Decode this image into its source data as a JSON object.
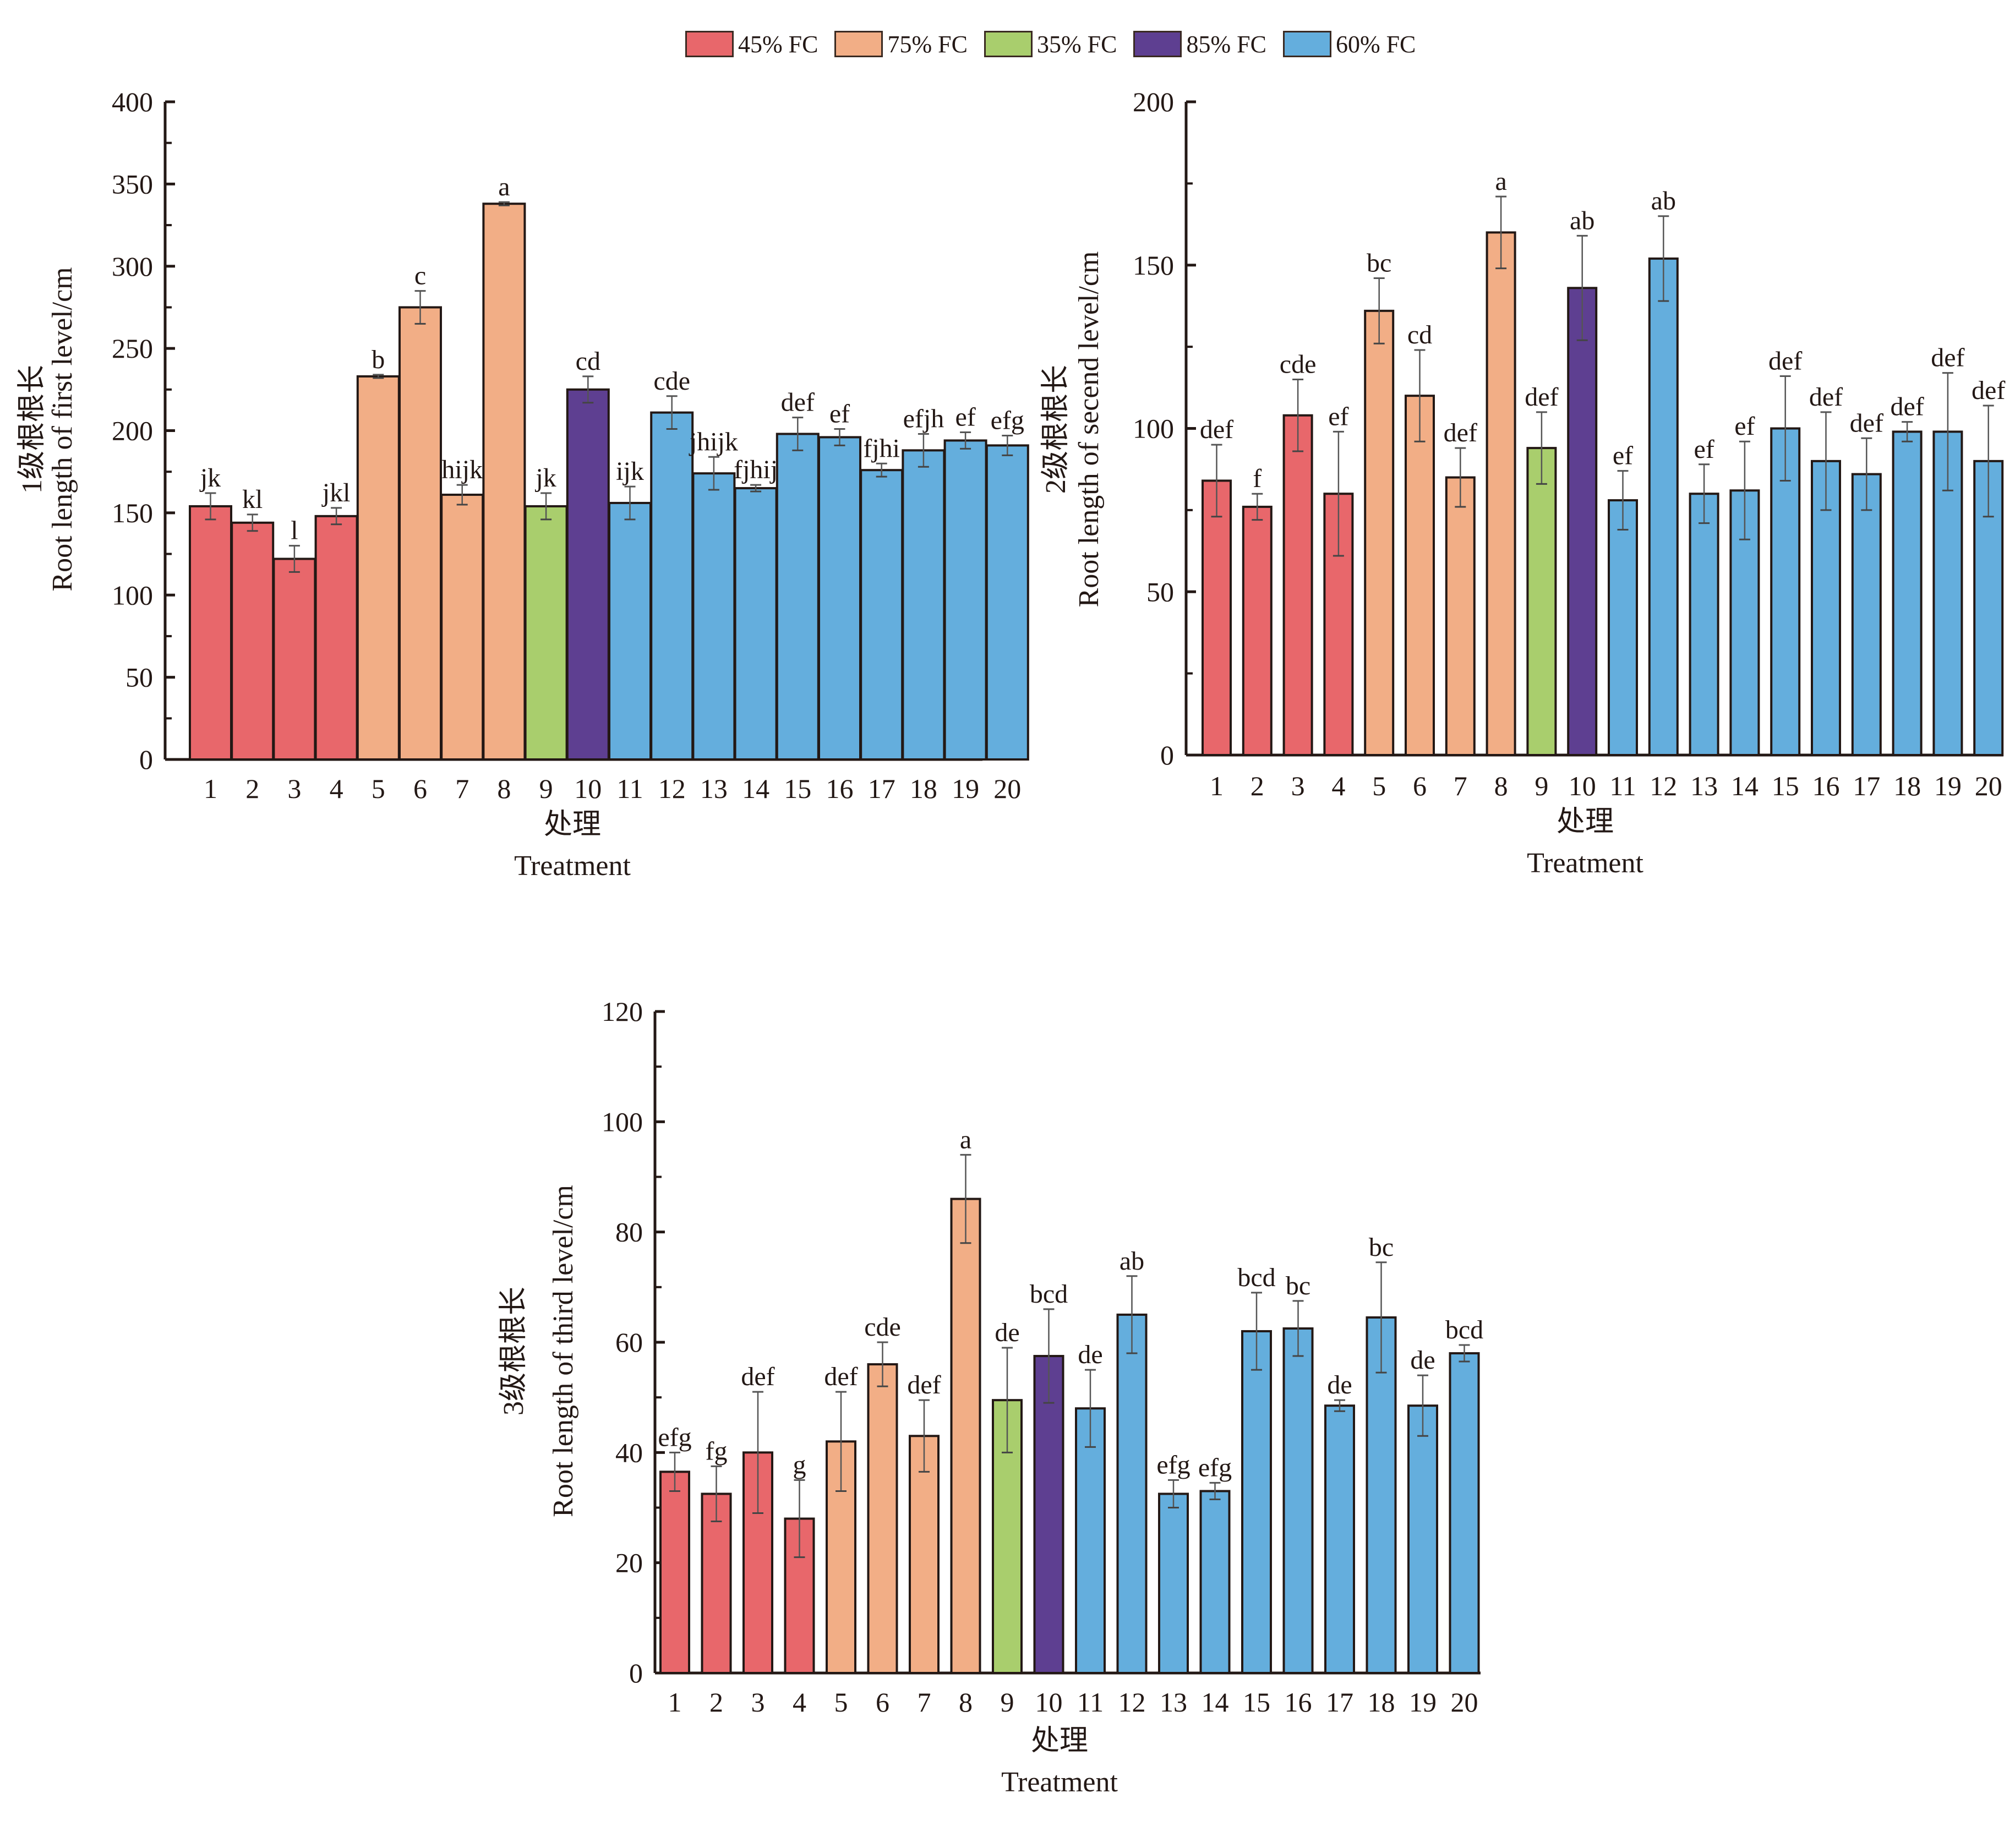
{
  "legend": [
    {
      "label": "45% FC",
      "color": "#E8676B"
    },
    {
      "label": "75% FC",
      "color": "#F2AE86"
    },
    {
      "label": "35% FC",
      "color": "#A9CE6D"
    },
    {
      "label": "85% FC",
      "color": "#5E3F91"
    },
    {
      "label": "60% FC",
      "color": "#64AEDD"
    }
  ],
  "chart_data": [
    {
      "type": "bar",
      "title": "",
      "ylabel_cn": "1级根根长",
      "ylabel": "Root length of first level/cm",
      "xlabel_cn": "处理",
      "xlabel": "Treatment",
      "ylim": [
        0,
        400
      ],
      "yticks": [
        0,
        50,
        100,
        150,
        200,
        250,
        300,
        350,
        400
      ],
      "categories": [
        "1",
        "2",
        "3",
        "4",
        "5",
        "6",
        "7",
        "8",
        "9",
        "10",
        "11",
        "12",
        "13",
        "14",
        "15",
        "16",
        "17",
        "18",
        "19",
        "20"
      ],
      "groups": [
        "45% FC",
        "45% FC",
        "45% FC",
        "45% FC",
        "75% FC",
        "75% FC",
        "75% FC",
        "75% FC",
        "35% FC",
        "85% FC",
        "60% FC",
        "60% FC",
        "60% FC",
        "60% FC",
        "60% FC",
        "60% FC",
        "60% FC",
        "60% FC",
        "60% FC",
        "60% FC"
      ],
      "values": [
        154,
        144,
        122,
        148,
        233,
        275,
        161,
        338,
        154,
        225,
        156,
        211,
        174,
        165,
        198,
        196,
        176,
        188,
        194,
        191
      ],
      "errors": [
        8,
        5,
        8,
        5,
        1,
        10,
        6,
        1,
        8,
        8,
        10,
        10,
        10,
        2,
        10,
        5,
        4,
        10,
        5,
        6
      ],
      "letters": [
        "jk",
        "kl",
        "l",
        "jkl",
        "b",
        "c",
        "hijk",
        "a",
        "jk",
        "cd",
        "ijk",
        "cde",
        "jhijk",
        "fjhij",
        "def",
        "ef",
        "fjhi",
        "efjh",
        "ef",
        "efg"
      ]
    },
    {
      "type": "bar",
      "title": "",
      "ylabel_cn": "2级根根长",
      "ylabel": "Root length of secend level/cm",
      "xlabel_cn": "处理",
      "xlabel": "Treatment",
      "ylim": [
        0,
        200
      ],
      "yticks": [
        0,
        50,
        100,
        150,
        200
      ],
      "categories": [
        "1",
        "2",
        "3",
        "4",
        "5",
        "6",
        "7",
        "8",
        "9",
        "10",
        "11",
        "12",
        "13",
        "14",
        "15",
        "16",
        "17",
        "18",
        "19",
        "20"
      ],
      "groups": [
        "45% FC",
        "45% FC",
        "45% FC",
        "45% FC",
        "75% FC",
        "75% FC",
        "75% FC",
        "75% FC",
        "35% FC",
        "85% FC",
        "60% FC",
        "60% FC",
        "60% FC",
        "60% FC",
        "60% FC",
        "60% FC",
        "60% FC",
        "60% FC",
        "60% FC",
        "60% FC"
      ],
      "values": [
        84,
        76,
        104,
        80,
        136,
        110,
        85,
        160,
        94,
        143,
        78,
        152,
        80,
        81,
        100,
        90,
        86,
        99,
        99,
        90
      ],
      "errors": [
        11,
        4,
        11,
        19,
        10,
        14,
        9,
        11,
        11,
        16,
        9,
        13,
        9,
        15,
        16,
        15,
        11,
        3,
        18,
        17
      ],
      "letters": [
        "def",
        "f",
        "cde",
        "ef",
        "bc",
        "cd",
        "def",
        "a",
        "def",
        "ab",
        "ef",
        "ab",
        "ef",
        "ef",
        "def",
        "def",
        "def",
        "def",
        "def",
        "def"
      ]
    },
    {
      "type": "bar",
      "title": "",
      "ylabel_cn": "3级根根长",
      "ylabel": "Root length of third level/cm",
      "xlabel_cn": "处理",
      "xlabel": "Treatment",
      "ylim": [
        0,
        120
      ],
      "yticks": [
        0,
        20,
        40,
        60,
        80,
        100,
        120
      ],
      "categories": [
        "1",
        "2",
        "3",
        "4",
        "5",
        "6",
        "7",
        "8",
        "9",
        "10",
        "11",
        "12",
        "13",
        "14",
        "15",
        "16",
        "17",
        "18",
        "19",
        "20"
      ],
      "groups": [
        "45% FC",
        "45% FC",
        "45% FC",
        "45% FC",
        "75% FC",
        "75% FC",
        "75% FC",
        "75% FC",
        "35% FC",
        "85% FC",
        "60% FC",
        "60% FC",
        "60% FC",
        "60% FC",
        "60% FC",
        "60% FC",
        "60% FC",
        "60% FC",
        "60% FC",
        "60% FC"
      ],
      "values": [
        36.5,
        32.5,
        40,
        28,
        42,
        56,
        43,
        86,
        49.5,
        57.5,
        48,
        65,
        32.5,
        33,
        62,
        62.5,
        48.5,
        64.5,
        48.5,
        58
      ],
      "errors": [
        3.5,
        5,
        11,
        7,
        9,
        4,
        6.5,
        8,
        9.5,
        8.5,
        7,
        7,
        2.5,
        1.5,
        7,
        5,
        1,
        10,
        5.5,
        1.5
      ],
      "letters": [
        "efg",
        "fg",
        "def",
        "g",
        "def",
        "cde",
        "def",
        "a",
        "de",
        "bcd",
        "de",
        "ab",
        "efg",
        "efg",
        "bcd",
        "bc",
        "de",
        "bc",
        "de",
        "bcd"
      ]
    }
  ]
}
